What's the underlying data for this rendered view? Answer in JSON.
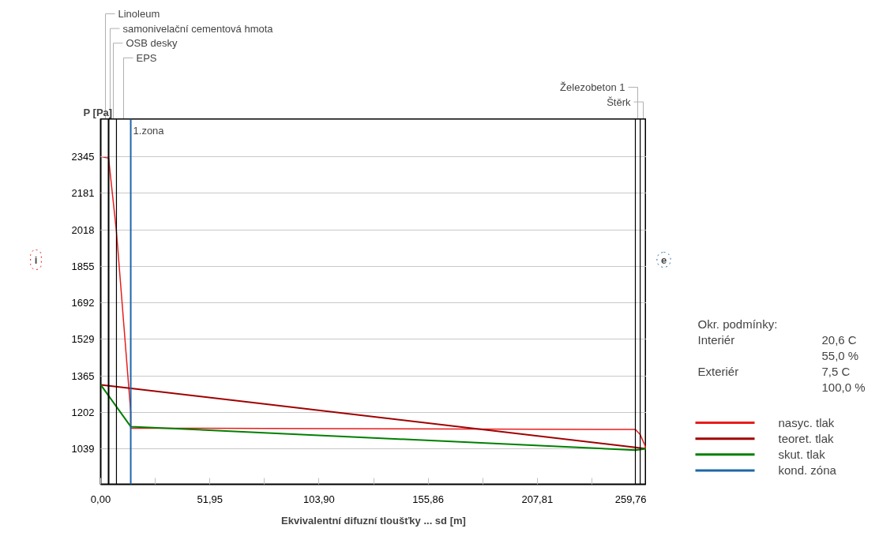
{
  "chart_data": {
    "type": "line",
    "xlabel": "Ekvivalentní difuzní tloušťky ... sd [m]",
    "ylabel": "P [Pa]",
    "xlim": [
      0,
      259.76
    ],
    "ylim": [
      880,
      2514
    ],
    "xticks": [
      {
        "value": 0,
        "label": "0,00"
      },
      {
        "value": 25.98,
        "label": null
      },
      {
        "value": 51.95,
        "label": "51,95"
      },
      {
        "value": 77.93,
        "label": null
      },
      {
        "value": 103.9,
        "label": "103,90"
      },
      {
        "value": 129.88,
        "label": null
      },
      {
        "value": 155.86,
        "label": "155,86"
      },
      {
        "value": 181.83,
        "label": null
      },
      {
        "value": 207.81,
        "label": "207,81"
      },
      {
        "value": 233.78,
        "label": null
      },
      {
        "value": 259.76,
        "label": "259,76"
      }
    ],
    "yticks": [
      1039,
      1202,
      1365,
      1529,
      1692,
      1855,
      2018,
      2181,
      2345
    ],
    "grid": "y",
    "legend": "bottom right",
    "marker": "none",
    "line_style": "solid",
    "series": [
      {
        "name": "nasyc. tlak",
        "color": "#e81c1c",
        "x": [
          0,
          3.76,
          7.5,
          14.3,
          14.3,
          254.5,
          256.8,
          259.76
        ],
        "values": [
          2345,
          2338,
          2010,
          1202,
          1131,
          1125,
          1102,
          1039
        ]
      },
      {
        "name": "teoret. tlak",
        "color": "#a00000",
        "x": [
          0,
          254.5,
          259.76
        ],
        "values": [
          1325,
          1045,
          1039
        ]
      },
      {
        "name": "skut. tlak",
        "color": "#008000",
        "x": [
          0,
          14.3,
          254.5,
          259.76
        ],
        "values": [
          1325,
          1138,
          1033,
          1039
        ]
      },
      {
        "name": "kond. zóna",
        "color": "#1f66a8",
        "x": [
          14.3,
          14.3
        ],
        "values": [
          880,
          2514
        ]
      }
    ],
    "ref_lines": [
      {
        "axis": "x",
        "value": 3.76,
        "color": "#000000"
      },
      {
        "axis": "x",
        "value": 7.5,
        "color": "#000000"
      },
      {
        "axis": "x",
        "value": 254.5,
        "color": "#000000"
      },
      {
        "axis": "x",
        "value": 256.8,
        "color": "#000000"
      }
    ],
    "annotations": [
      "i",
      "e",
      "Okr. podmínky:",
      "Interiér",
      "20,6 C",
      "55,0 %",
      "Exteriér",
      "7,5 C",
      "100,0 %",
      {
        "text": "1.zona",
        "x": 14.3,
        "y": 2460
      },
      "Linoleum",
      "samonivelační cementová hmota",
      "OSB desky",
      "EPS",
      "Železobeton 1",
      "Štěrk"
    ]
  }
}
